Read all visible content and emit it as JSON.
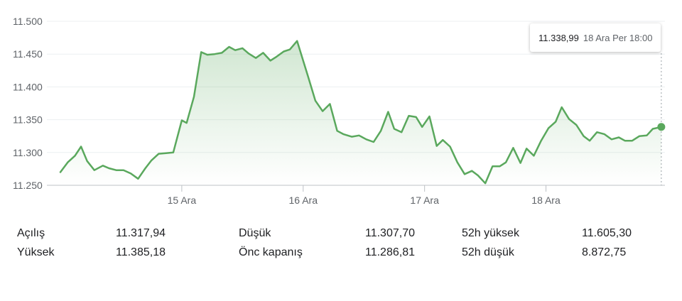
{
  "chart_data": {
    "type": "line",
    "y_ticks": [
      "11.500",
      "11.450",
      "11.400",
      "11.350",
      "11.300",
      "11.250"
    ],
    "y_tick_values": [
      11500,
      11450,
      11400,
      11350,
      11300,
      11250
    ],
    "ylim": [
      11250,
      11500
    ],
    "x_ticks": [
      "15 Ara",
      "16 Ara",
      "17 Ara",
      "18 Ara"
    ],
    "x_tick_positions": [
      1,
      2,
      3,
      4
    ],
    "xlim": [
      0.0,
      4.98
    ],
    "grid": true,
    "line_color": "#5aa85d",
    "fill_color": "#5aa85d",
    "series": [
      {
        "x": [
          0.0,
          0.06,
          0.12,
          0.17,
          0.22,
          0.28,
          0.35,
          0.4,
          0.46,
          0.52,
          0.58,
          0.64,
          0.7,
          0.75,
          0.81,
          0.87,
          0.93,
          1.0,
          1.04,
          1.1,
          1.16,
          1.21,
          1.27,
          1.33,
          1.39,
          1.44,
          1.5,
          1.55,
          1.61,
          1.67,
          1.73,
          1.78,
          1.84,
          1.89,
          1.95,
          2.04,
          2.1,
          2.16,
          2.22,
          2.28,
          2.33,
          2.4,
          2.46,
          2.52,
          2.58,
          2.64,
          2.7,
          2.75,
          2.81,
          2.87,
          2.93,
          2.98,
          3.04,
          3.1,
          3.15,
          3.21,
          3.27,
          3.33,
          3.39,
          3.44,
          3.5,
          3.56,
          3.62,
          3.67,
          3.73,
          3.79,
          3.84,
          3.9,
          3.96,
          4.02,
          4.08,
          4.13,
          4.19,
          4.25,
          4.31,
          4.36,
          4.42,
          4.48,
          4.54,
          4.6,
          4.65,
          4.71,
          4.77,
          4.83,
          4.88,
          4.95
        ],
        "y": [
          11270,
          11285,
          11295,
          11309,
          11287,
          11273,
          11280,
          11276,
          11273,
          11273,
          11268,
          11260,
          11276,
          11288,
          11298,
          11299,
          11300,
          11349,
          11345,
          11385,
          11453,
          11449,
          11450,
          11452,
          11461,
          11456,
          11459,
          11451,
          11444,
          11452,
          11440,
          11446,
          11454,
          11457,
          11470,
          11416,
          11379,
          11363,
          11374,
          11333,
          11328,
          11324,
          11326,
          11320,
          11316,
          11333,
          11362,
          11336,
          11331,
          11356,
          11354,
          11339,
          11355,
          11310,
          11319,
          11309,
          11285,
          11267,
          11272,
          11265,
          11253,
          11279,
          11279,
          11285,
          11307,
          11284,
          11306,
          11295,
          11318,
          11337,
          11347,
          11369,
          11351,
          11342,
          11325,
          11318,
          11331,
          11328,
          11320,
          11323,
          11318,
          11318,
          11325,
          11326,
          11336,
          11339
        ]
      }
    ]
  },
  "tooltip": {
    "value": "11.338,99",
    "time": "18 Ara Per 18:00"
  },
  "stats": {
    "open_label": "Açılış",
    "open_value": "11.317,94",
    "low_label": "Düşük",
    "low_value": "11.307,70",
    "high52_label": "52h yüksek",
    "high52_value": "11.605,30",
    "high_label": "Yüksek",
    "high_value": "11.385,18",
    "prev_close_label": "Önc kapanış",
    "prev_close_value": "11.286,81",
    "low52_label": "52h düşük",
    "low52_value": "8.872,75"
  }
}
